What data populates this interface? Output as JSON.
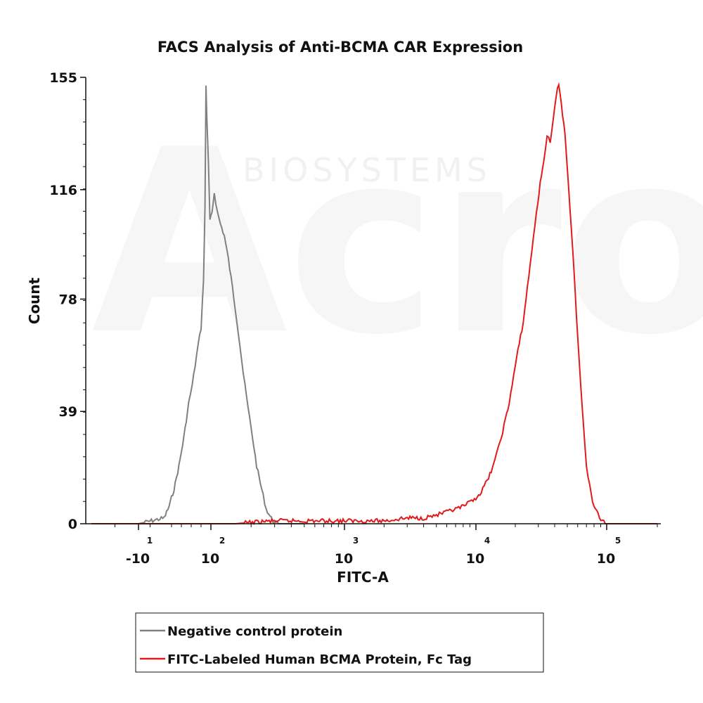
{
  "chart_data": {
    "type": "line",
    "title": "FACS Analysis of Anti-BCMA CAR Expression",
    "xlabel": "FITC-A",
    "ylabel": "Count",
    "x_scale": "biexponential",
    "y_ticks": [
      "0",
      "39",
      "78",
      "116",
      "155"
    ],
    "ylim": [
      0,
      155
    ],
    "x_ticks": [
      {
        "base": "-10",
        "exp": "1",
        "value": -10
      },
      {
        "base": "10",
        "exp": "2",
        "value": 100
      },
      {
        "base": "10",
        "exp": "3",
        "value": 1000
      },
      {
        "base": "10",
        "exp": "4",
        "value": 10000
      },
      {
        "base": "10",
        "exp": "5",
        "value": 100000
      }
    ],
    "legend_position": "bottom-center",
    "watermark": "BIOSYSTEMS",
    "series": [
      {
        "name": "Negative control protein",
        "color": "#808080",
        "points": [
          [
            -30,
            0
          ],
          [
            -10,
            0
          ],
          [
            5,
            2
          ],
          [
            15,
            6
          ],
          [
            25,
            12
          ],
          [
            35,
            20
          ],
          [
            45,
            30
          ],
          [
            55,
            42
          ],
          [
            62,
            48
          ],
          [
            68,
            55
          ],
          [
            74,
            62
          ],
          [
            80,
            68
          ],
          [
            85,
            85
          ],
          [
            88,
            110
          ],
          [
            90,
            152
          ],
          [
            92,
            140
          ],
          [
            95,
            125
          ],
          [
            98,
            105
          ],
          [
            102,
            108
          ],
          [
            106,
            115
          ],
          [
            112,
            108
          ],
          [
            118,
            104
          ],
          [
            126,
            100
          ],
          [
            135,
            92
          ],
          [
            145,
            82
          ],
          [
            155,
            72
          ],
          [
            165,
            62
          ],
          [
            175,
            52
          ],
          [
            190,
            40
          ],
          [
            205,
            30
          ],
          [
            220,
            20
          ],
          [
            240,
            12
          ],
          [
            260,
            5
          ],
          [
            290,
            1
          ],
          [
            320,
            0
          ],
          [
            500,
            0
          ]
        ]
      },
      {
        "name": "FITC-Labeled Human BCMA Protein, Fc Tag",
        "color": "#e11b1b",
        "points": [
          [
            -30,
            0
          ],
          [
            0,
            0
          ],
          [
            60,
            0
          ],
          [
            150,
            0
          ],
          [
            300,
            1
          ],
          [
            700,
            1
          ],
          [
            1000,
            1
          ],
          [
            2000,
            1
          ],
          [
            3000,
            2
          ],
          [
            4000,
            2
          ],
          [
            5000,
            3
          ],
          [
            6000,
            4
          ],
          [
            7000,
            5
          ],
          [
            8000,
            6
          ],
          [
            9500,
            8
          ],
          [
            11000,
            11
          ],
          [
            12500,
            16
          ],
          [
            14000,
            22
          ],
          [
            16000,
            32
          ],
          [
            18000,
            42
          ],
          [
            20000,
            55
          ],
          [
            23000,
            70
          ],
          [
            26000,
            90
          ],
          [
            29000,
            108
          ],
          [
            31000,
            118
          ],
          [
            33000,
            126
          ],
          [
            35000,
            135
          ],
          [
            37000,
            132
          ],
          [
            39000,
            140
          ],
          [
            41000,
            148
          ],
          [
            43000,
            153
          ],
          [
            45000,
            146
          ],
          [
            48000,
            135
          ],
          [
            51000,
            118
          ],
          [
            55000,
            95
          ],
          [
            60000,
            65
          ],
          [
            65000,
            40
          ],
          [
            70000,
            20
          ],
          [
            78000,
            8
          ],
          [
            88000,
            2
          ],
          [
            100000,
            0
          ],
          [
            150000,
            0
          ],
          [
            200000,
            0
          ]
        ]
      }
    ]
  }
}
